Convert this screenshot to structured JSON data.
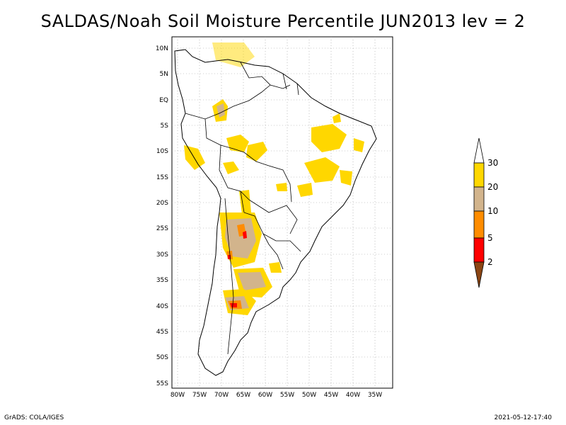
{
  "title": "SALDAS/Noah Soil Moisture Percentile JUN2013 lev = 2",
  "footer": {
    "left": "GrADS: COLA/IGES",
    "right": "2021-05-12-17:40"
  },
  "map": {
    "lat_labels": [
      "10N",
      "5N",
      "EQ",
      "5S",
      "10S",
      "15S",
      "20S",
      "25S",
      "30S",
      "35S",
      "40S",
      "45S",
      "50S",
      "55S"
    ],
    "lon_labels": [
      "80W",
      "75W",
      "70W",
      "65W",
      "60W",
      "55W",
      "50W",
      "45W",
      "40W",
      "35W"
    ],
    "extent": {
      "lon_min": -80,
      "lon_max": -30,
      "lat_min": -55,
      "lat_max": 10
    }
  },
  "colorbar": {
    "levels": [
      "2",
      "5",
      "10",
      "20",
      "30"
    ],
    "colors": {
      "below_2": "#8b4513",
      "2_5": "#ff0000",
      "5_10": "#ff8c00",
      "10_20": "#d2b48c",
      "20_30": "#ffd700",
      "above_30": "#ffffff"
    }
  }
}
